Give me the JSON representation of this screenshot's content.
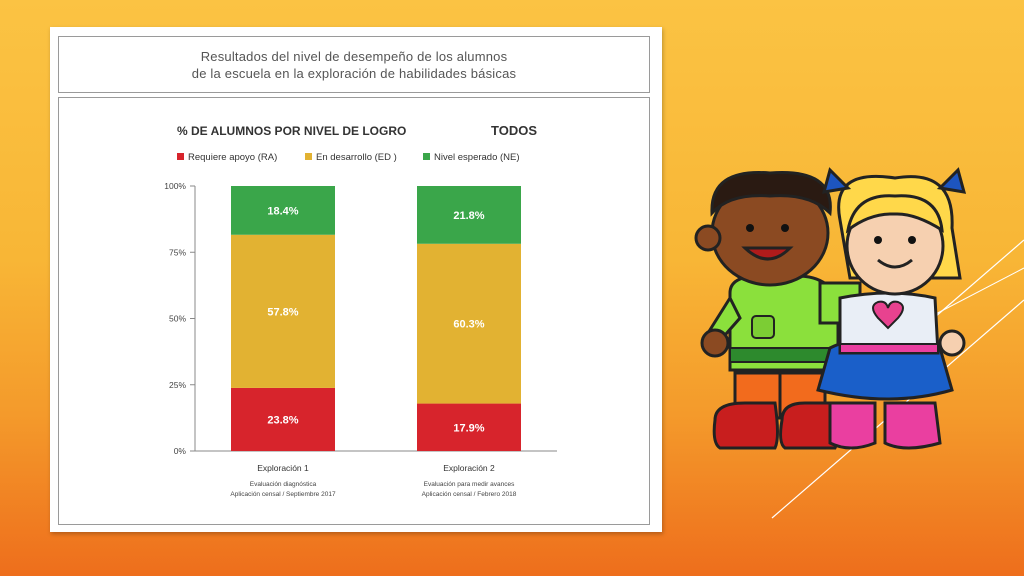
{
  "header": {
    "title_line1": "Resultados del nivel de desempeño de los alumnos",
    "title_line2": "de la escuela en la exploración de habilidades básicas"
  },
  "chart_data": {
    "type": "bar",
    "stacked": true,
    "title": "% DE ALUMNOS POR NIVEL DE LOGRO",
    "subtitle": "TODOS",
    "categories": [
      "Exploración 1",
      "Exploración 2"
    ],
    "category_notes": [
      [
        "Evaluación diagnóstica",
        "Aplicación censal / Septiembre 2017"
      ],
      [
        "Evaluación para medir avances",
        "Aplicación censal / Febrero 2018"
      ]
    ],
    "series": [
      {
        "name": "Requiere apoyo (RA)",
        "color": "#d7242c",
        "values": [
          23.8,
          17.9
        ],
        "labels": [
          "23.8%",
          "17.9%"
        ]
      },
      {
        "name": "En desarrollo (ED )",
        "color": "#e2b232",
        "values": [
          57.8,
          60.3
        ],
        "labels": [
          "57.8%",
          "60.3%"
        ]
      },
      {
        "name": "Nivel esperado (NE)",
        "color": "#3aa64a",
        "values": [
          18.4,
          21.8
        ],
        "labels": [
          "18.4%",
          "21.8%"
        ]
      }
    ],
    "ylim": [
      0,
      100
    ],
    "yticks": [
      "0%",
      "25%",
      "50%",
      "75%",
      "100%"
    ],
    "legend_position": "top",
    "grid": false
  }
}
